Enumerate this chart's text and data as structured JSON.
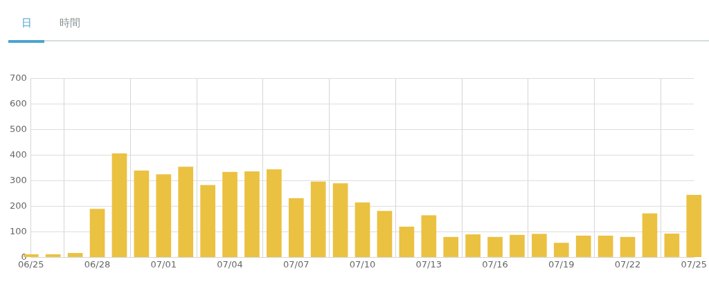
{
  "chart_data": {
    "type": "bar",
    "annotations": [
      "日",
      "時間"
    ],
    "x": [
      "--06-25",
      "--06-26",
      "--06-27",
      "--06-28",
      "--06-29",
      "--06-30",
      "--07-01",
      "--07-02",
      "--07-03",
      "--07-04",
      "--07-05",
      "--07-06",
      "--07-07",
      "--07-08",
      "--07-09",
      "--07-10",
      "--07-11",
      "--07-12",
      "--07-13",
      "--07-14",
      "--07-15",
      "--07-16",
      "--07-17",
      "--07-18",
      "--07-19",
      "--07-20",
      "--07-21",
      "--07-22",
      "--07-23",
      "--07-24",
      "--07-25"
    ],
    "values": [
      12,
      12,
      17,
      190,
      407,
      340,
      325,
      355,
      283,
      335,
      337,
      345,
      232,
      297,
      290,
      215,
      182,
      120,
      165,
      80,
      90,
      80,
      88,
      92,
      57,
      85,
      85,
      80,
      172,
      93,
      245
    ],
    "color": "#ebc142",
    "xlim": [
      "--06-25",
      "--07-25"
    ],
    "xticks": [
      {
        "value": "--06-25",
        "label": "06/25"
      },
      {
        "value": "--06-28",
        "label": "06/28"
      },
      {
        "value": "--07-01",
        "label": "07/01"
      },
      {
        "value": "--07-04",
        "label": "07/04"
      },
      {
        "value": "--07-07",
        "label": "07/07"
      },
      {
        "value": "--07-10",
        "label": "07/10"
      },
      {
        "value": "--07-13",
        "label": "07/13"
      },
      {
        "value": "--07-16",
        "label": "07/16"
      },
      {
        "value": "--07-19",
        "label": "07/19"
      },
      {
        "value": "--07-22",
        "label": "07/22"
      },
      {
        "value": "--07-25",
        "label": "07/25"
      }
    ],
    "ylim": [
      0,
      700
    ],
    "yticks": [
      0,
      100,
      200,
      300,
      400,
      500,
      600,
      700
    ],
    "grid": true,
    "legend": false
  }
}
